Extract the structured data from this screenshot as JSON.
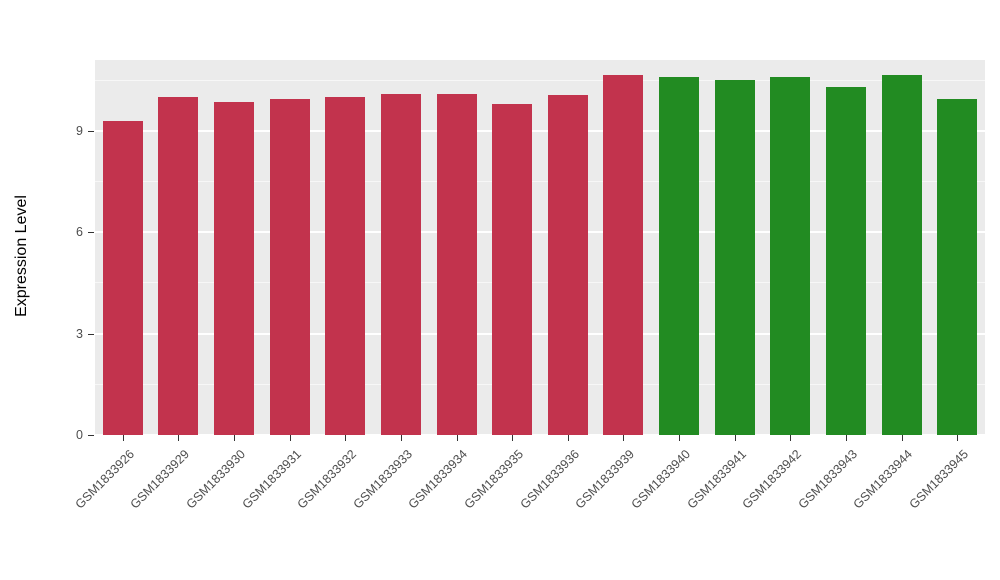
{
  "chart_data": {
    "type": "bar",
    "title": "",
    "xlabel": "",
    "ylabel": "Expression Level",
    "ylim": [
      0,
      11.1
    ],
    "yticks": [
      0,
      3,
      6,
      9
    ],
    "yticks_minor": [
      1.5,
      4.5,
      7.5,
      10.5
    ],
    "grid": "on",
    "legend": "none",
    "plot_background": "#EBEBEB",
    "categories": [
      "GSM1833926",
      "GSM1833929",
      "GSM1833930",
      "GSM1833931",
      "GSM1833932",
      "GSM1833933",
      "GSM1833934",
      "GSM1833935",
      "GSM1833936",
      "GSM1833939",
      "GSM1833940",
      "GSM1833941",
      "GSM1833942",
      "GSM1833943",
      "GSM1833944",
      "GSM1833945"
    ],
    "values": [
      9.3,
      10.0,
      9.85,
      9.95,
      10.0,
      10.1,
      10.1,
      9.8,
      10.05,
      10.65,
      10.6,
      10.5,
      10.6,
      10.3,
      10.65,
      9.95
    ],
    "groups": [
      "red",
      "red",
      "red",
      "red",
      "red",
      "red",
      "red",
      "red",
      "red",
      "red",
      "green",
      "green",
      "green",
      "green",
      "green",
      "green"
    ],
    "colors": {
      "red": "#C2334D",
      "green": "#228B22"
    }
  }
}
